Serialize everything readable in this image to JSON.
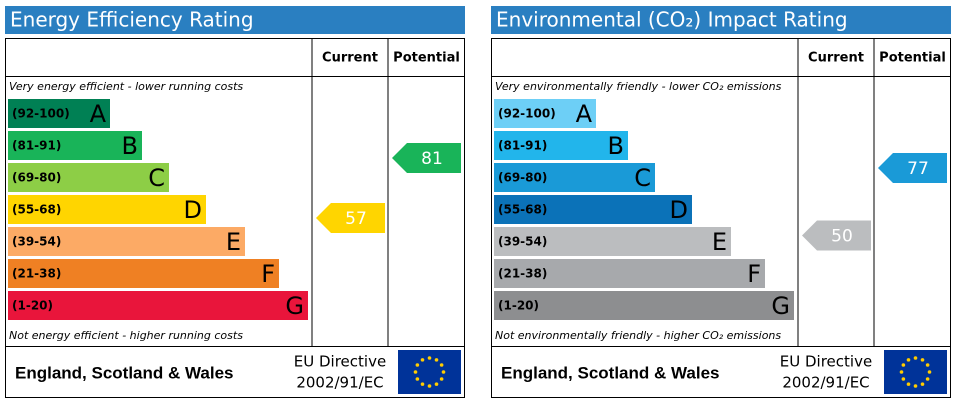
{
  "panels": [
    {
      "title": "Energy Efficiency Rating",
      "columns": [
        "Current",
        "Potential"
      ],
      "top_note": "Very energy efficient - lower running costs",
      "bottom_note": "Not energy efficient - higher running costs",
      "bands": [
        {
          "range": "(92-100)",
          "letter": "A",
          "color": "#008054"
        },
        {
          "range": "(81-91)",
          "letter": "B",
          "color": "#19b459"
        },
        {
          "range": "(69-80)",
          "letter": "C",
          "color": "#8dce46"
        },
        {
          "range": "(55-68)",
          "letter": "D",
          "color": "#ffd500"
        },
        {
          "range": "(39-54)",
          "letter": "E",
          "color": "#fcaa65"
        },
        {
          "range": "(21-38)",
          "letter": "F",
          "color": "#ef8023"
        },
        {
          "range": "(1-20)",
          "letter": "G",
          "color": "#e9153b"
        }
      ],
      "current": 57,
      "potential": 81,
      "footer": {
        "region": "England, Scotland & Wales",
        "directive": "EU Directive",
        "code": "2002/91/EC"
      }
    },
    {
      "title": "Environmental (CO₂) Impact Rating",
      "columns": [
        "Current",
        "Potential"
      ],
      "top_note": "Very environmentally friendly - lower CO₂ emissions",
      "bottom_note": "Not environmentally friendly - higher CO₂ emissions",
      "bands": [
        {
          "range": "(92-100)",
          "letter": "A",
          "color": "#6dcff6"
        },
        {
          "range": "(81-91)",
          "letter": "B",
          "color": "#22b5eb"
        },
        {
          "range": "(69-80)",
          "letter": "C",
          "color": "#1a9ad7"
        },
        {
          "range": "(55-68)",
          "letter": "D",
          "color": "#0b72b8"
        },
        {
          "range": "(39-54)",
          "letter": "E",
          "color": "#bbbdbf"
        },
        {
          "range": "(21-38)",
          "letter": "F",
          "color": "#a7a9ac"
        },
        {
          "range": "(1-20)",
          "letter": "G",
          "color": "#8d8e90"
        }
      ],
      "current": 50,
      "potential": 77,
      "footer": {
        "region": "England, Scotland & Wales",
        "directive": "EU Directive",
        "code": "2002/91/EC"
      }
    }
  ]
}
